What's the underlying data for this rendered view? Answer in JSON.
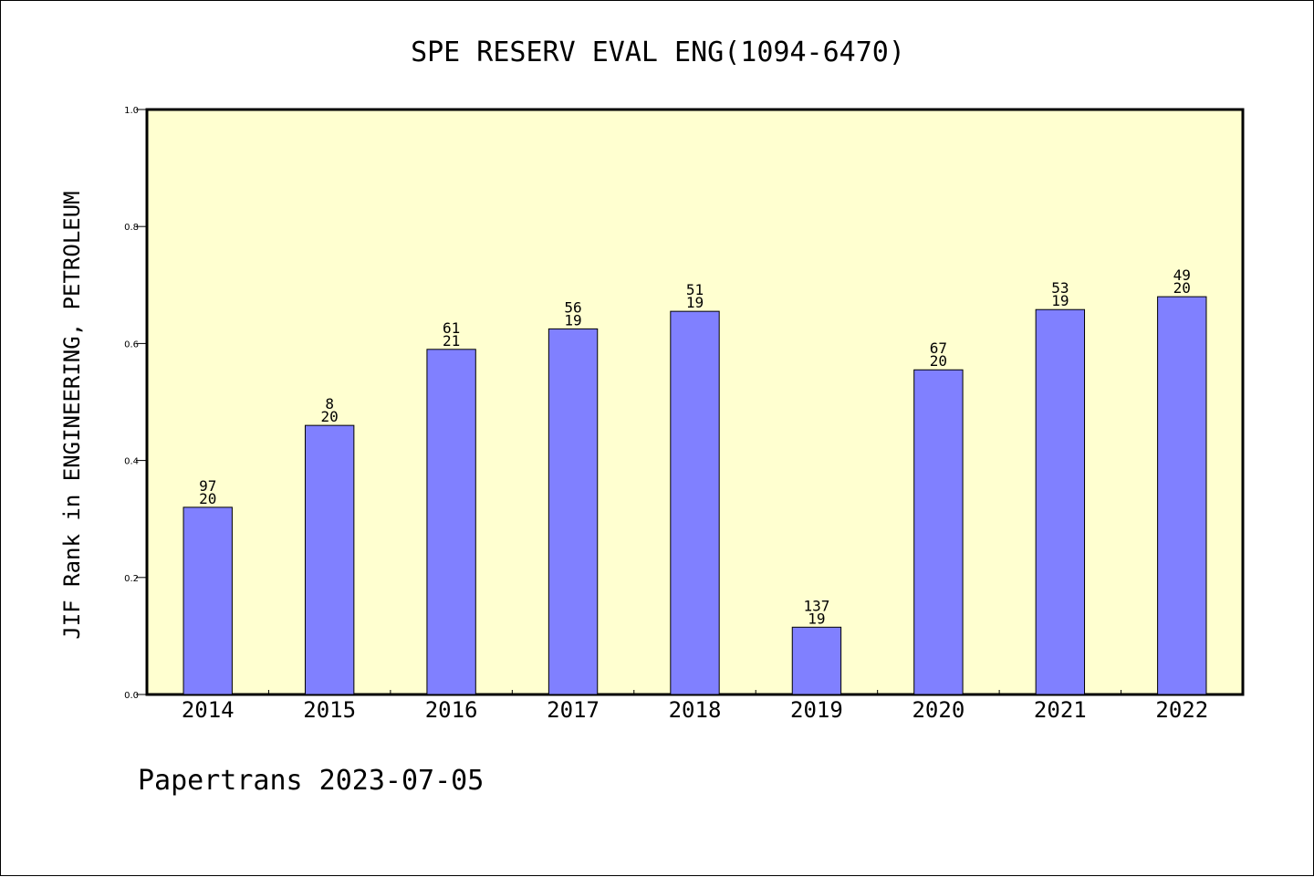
{
  "chart_data": {
    "type": "bar",
    "title": "SPE RESERV EVAL ENG(1094-6470)",
    "ylabel": "JIF Rank in ENGINEERING, PETROLEUM",
    "xlabel": "",
    "categories": [
      "2014",
      "2015",
      "2016",
      "2017",
      "2018",
      "2019",
      "2020",
      "2021",
      "2022"
    ],
    "values": [
      0.32,
      0.46,
      0.59,
      0.625,
      0.655,
      0.115,
      0.555,
      0.658,
      0.68
    ],
    "annotations": [
      [
        "97",
        "20"
      ],
      [
        "8",
        "20"
      ],
      [
        "61",
        "21"
      ],
      [
        "56",
        "19"
      ],
      [
        "51",
        "19"
      ],
      [
        "137",
        "19"
      ],
      [
        "67",
        "20"
      ],
      [
        "53",
        "19"
      ],
      [
        "49",
        "20"
      ]
    ],
    "ylim": [
      0,
      1.0
    ],
    "yticks": [
      "0.0",
      "0.2",
      "0.4",
      "0.6",
      "0.8",
      "1.0"
    ],
    "grid": false,
    "colors": {
      "bar": "#8080ff",
      "plot_background": "#ffffd0",
      "page_background": "#ffffff"
    }
  },
  "footer": "Papertrans 2023-07-05"
}
